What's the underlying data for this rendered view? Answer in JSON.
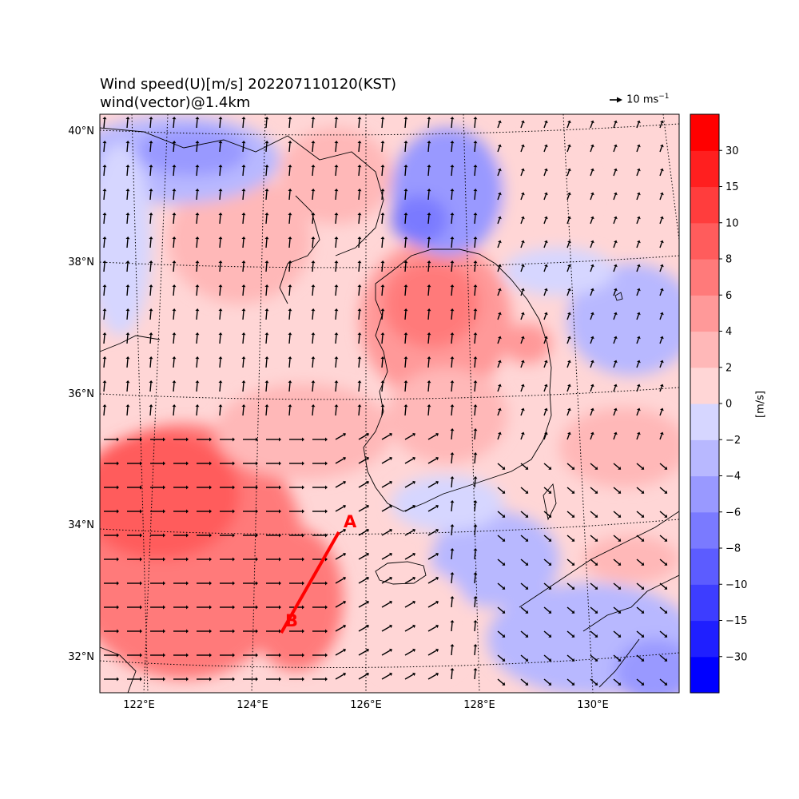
{
  "title": {
    "line1": "Wind speed(U)[m/s] 202207110120(KST)",
    "line2": "wind(vector)@1.4km"
  },
  "quiver_key": {
    "label": "10 ms",
    "unit_exponent": "−1"
  },
  "map": {
    "lat_labels": [
      "32°N",
      "34°N",
      "36°N",
      "38°N",
      "40°N"
    ],
    "lon_labels": [
      "122°E",
      "124°E",
      "126°E",
      "128°E",
      "130°E"
    ]
  },
  "cross_section": {
    "label_a": "A",
    "label_b": "B",
    "color": "#ff0000"
  },
  "colorbar": {
    "unit_label": "[m/s]",
    "levels": [
      "−30",
      "−15",
      "−10",
      "−8",
      "−6",
      "−4",
      "−2",
      "0",
      "2",
      "4",
      "6",
      "8",
      "10",
      "15",
      "30"
    ],
    "colors": [
      "#0000ff",
      "#1f1fff",
      "#3d3dff",
      "#5c5cff",
      "#7a7aff",
      "#9999ff",
      "#b8b8ff",
      "#d6d6ff",
      "#ffd6d6",
      "#ffb8b8",
      "#ff9999",
      "#ff7a7a",
      "#ff5c5c",
      "#ff3d3d",
      "#ff1f1f",
      "#ff0000"
    ]
  }
}
